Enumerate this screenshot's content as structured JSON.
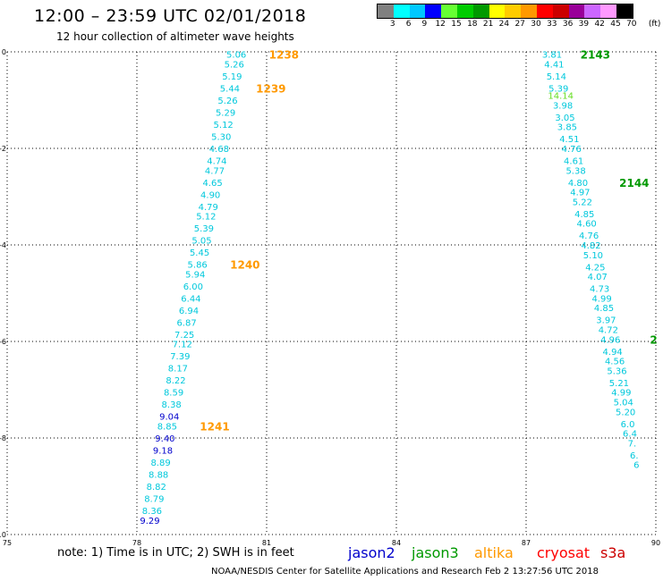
{
  "title": "12:00 – 23:59 UTC 02/01/2018",
  "subtitle": "12 hour collection of altimeter wave heights",
  "scale": {
    "colors": [
      "#808080",
      "#00ffff",
      "#00c8ff",
      "#0000ff",
      "#66ff33",
      "#00cc00",
      "#009900",
      "#ffff00",
      "#ffcc00",
      "#ff9900",
      "#ff0000",
      "#cc0000",
      "#990099",
      "#cc66ff",
      "#ff99ff",
      "#000000"
    ],
    "labels": [
      "3",
      "6",
      "9",
      "12",
      "15",
      "18",
      "21",
      "24",
      "27",
      "30",
      "33",
      "36",
      "39",
      "42",
      "45",
      "70",
      "(ft)"
    ]
  },
  "chart_data": {
    "type": "scatter",
    "x_ticks": [
      "75",
      "78",
      "81",
      "84",
      "87",
      "90"
    ],
    "y_ticks": [
      "0",
      "-2",
      "-4",
      "-6",
      "-8",
      "-10"
    ],
    "xlim": [
      75,
      90
    ],
    "ylim": [
      -10,
      0
    ],
    "grid": true,
    "tracks": [
      {
        "label_color": "#00c8dc",
        "points": [
          {
            "x": 80.3,
            "y": -0.05,
            "v": "5.06"
          },
          {
            "x": 80.25,
            "y": -0.25,
            "v": "5.26"
          },
          {
            "x": 80.2,
            "y": -0.5,
            "v": "5.19"
          },
          {
            "x": 80.15,
            "y": -0.75,
            "v": "5.44"
          },
          {
            "x": 80.1,
            "y": -1.0,
            "v": "5.26"
          },
          {
            "x": 80.05,
            "y": -1.25,
            "v": "5.29"
          },
          {
            "x": 80.0,
            "y": -1.5,
            "v": "5.12"
          },
          {
            "x": 79.95,
            "y": -1.75,
            "v": "5.30"
          },
          {
            "x": 79.9,
            "y": -2.0,
            "v": "4.68"
          },
          {
            "x": 79.85,
            "y": -2.25,
            "v": "4.74"
          },
          {
            "x": 79.8,
            "y": -2.45,
            "v": "4.77"
          },
          {
            "x": 79.75,
            "y": -2.7,
            "v": "4.65"
          },
          {
            "x": 79.7,
            "y": -2.95,
            "v": "4.90"
          },
          {
            "x": 79.65,
            "y": -3.2,
            "v": "4.79"
          },
          {
            "x": 79.6,
            "y": -3.4,
            "v": "5.12"
          },
          {
            "x": 79.55,
            "y": -3.65,
            "v": "5.39"
          },
          {
            "x": 79.5,
            "y": -3.9,
            "v": "5.05"
          },
          {
            "x": 79.45,
            "y": -4.15,
            "v": "5.45"
          },
          {
            "x": 79.4,
            "y": -4.4,
            "v": "5.86"
          },
          {
            "x": 79.35,
            "y": -4.6,
            "v": "5.94"
          },
          {
            "x": 79.3,
            "y": -4.85,
            "v": "6.00"
          },
          {
            "x": 79.25,
            "y": -5.1,
            "v": "6.44"
          },
          {
            "x": 79.2,
            "y": -5.35,
            "v": "6.94"
          },
          {
            "x": 79.15,
            "y": -5.6,
            "v": "6.87"
          },
          {
            "x": 79.1,
            "y": -5.85,
            "v": "7.25"
          },
          {
            "x": 79.05,
            "y": -6.05,
            "v": "7.12"
          },
          {
            "x": 79.0,
            "y": -6.3,
            "v": "7.39"
          },
          {
            "x": 78.95,
            "y": -6.55,
            "v": "8.17"
          },
          {
            "x": 78.9,
            "y": -6.8,
            "v": "8.22"
          },
          {
            "x": 78.85,
            "y": -7.05,
            "v": "8.59"
          },
          {
            "x": 78.8,
            "y": -7.3,
            "v": "8.38"
          },
          {
            "x": 78.75,
            "y": -7.55,
            "v": "9.04",
            "c": "#0000cc"
          },
          {
            "x": 78.7,
            "y": -7.75,
            "v": "8.85"
          },
          {
            "x": 78.65,
            "y": -8.0,
            "v": "9.40",
            "c": "#0000cc"
          },
          {
            "x": 78.6,
            "y": -8.25,
            "v": "9.18",
            "c": "#0000cc"
          },
          {
            "x": 78.55,
            "y": -8.5,
            "v": "8.89"
          },
          {
            "x": 78.5,
            "y": -8.75,
            "v": "8.88"
          },
          {
            "x": 78.45,
            "y": -9.0,
            "v": "8.82"
          },
          {
            "x": 78.4,
            "y": -9.25,
            "v": "8.79"
          },
          {
            "x": 78.35,
            "y": -9.5,
            "v": "8.36"
          },
          {
            "x": 78.3,
            "y": -9.7,
            "v": "9.29",
            "c": "#0000cc"
          }
        ],
        "time_labels": [
          {
            "x": 81.4,
            "y": -0.05,
            "text": "1238"
          },
          {
            "x": 81.1,
            "y": -0.75,
            "text": "1239"
          },
          {
            "x": 80.5,
            "y": -4.4,
            "text": "1240"
          },
          {
            "x": 79.8,
            "y": -7.75,
            "text": "1241"
          }
        ]
      },
      {
        "label_color": "#00c8dc",
        "points": [
          {
            "x": 87.6,
            "y": -0.05,
            "v": "3.81"
          },
          {
            "x": 87.65,
            "y": -0.25,
            "v": "4.41"
          },
          {
            "x": 87.7,
            "y": -0.5,
            "v": "5.14"
          },
          {
            "x": 87.75,
            "y": -0.75,
            "v": "5.39"
          },
          {
            "x": 87.8,
            "y": -0.9,
            "v": "14.14",
            "c": "#66dd22"
          },
          {
            "x": 87.85,
            "y": -1.1,
            "v": "3.98"
          },
          {
            "x": 87.9,
            "y": -1.35,
            "v": "3.05"
          },
          {
            "x": 87.95,
            "y": -1.55,
            "v": "3.85"
          },
          {
            "x": 88.0,
            "y": -1.8,
            "v": "4.51"
          },
          {
            "x": 88.05,
            "y": -2.0,
            "v": "4.76"
          },
          {
            "x": 88.1,
            "y": -2.25,
            "v": "4.61"
          },
          {
            "x": 88.15,
            "y": -2.45,
            "v": "5.38"
          },
          {
            "x": 88.2,
            "y": -2.7,
            "v": "4.80"
          },
          {
            "x": 88.25,
            "y": -2.9,
            "v": "4.97"
          },
          {
            "x": 88.3,
            "y": -3.1,
            "v": "5.22"
          },
          {
            "x": 88.35,
            "y": -3.35,
            "v": "4.85"
          },
          {
            "x": 88.4,
            "y": -3.55,
            "v": "4.60"
          },
          {
            "x": 88.45,
            "y": -3.8,
            "v": "4.76"
          },
          {
            "x": 88.5,
            "y": -4.0,
            "v": "4.82"
          },
          {
            "x": 88.55,
            "y": -4.2,
            "v": "5.10"
          },
          {
            "x": 88.6,
            "y": -4.45,
            "v": "4.25"
          },
          {
            "x": 88.65,
            "y": -4.65,
            "v": "4.07"
          },
          {
            "x": 88.7,
            "y": -4.9,
            "v": "4.73"
          },
          {
            "x": 88.75,
            "y": -5.1,
            "v": "4.99"
          },
          {
            "x": 88.8,
            "y": -5.3,
            "v": "4.85"
          },
          {
            "x": 88.85,
            "y": -5.55,
            "v": "3.97"
          },
          {
            "x": 88.9,
            "y": -5.75,
            "v": "4.72"
          },
          {
            "x": 88.95,
            "y": -5.95,
            "v": "4.96"
          },
          {
            "x": 89.0,
            "y": -6.2,
            "v": "4.94"
          },
          {
            "x": 89.05,
            "y": -6.4,
            "v": "4.56"
          },
          {
            "x": 89.1,
            "y": -6.6,
            "v": "5.36"
          },
          {
            "x": 89.15,
            "y": -6.85,
            "v": "5.21"
          },
          {
            "x": 89.2,
            "y": -7.05,
            "v": "4.99"
          },
          {
            "x": 89.25,
            "y": -7.25,
            "v": "5.04"
          },
          {
            "x": 89.3,
            "y": -7.45,
            "v": "5.20"
          },
          {
            "x": 89.35,
            "y": -7.7,
            "v": "6.0"
          },
          {
            "x": 89.4,
            "y": -7.9,
            "v": "6.4"
          },
          {
            "x": 89.45,
            "y": -8.1,
            "v": "7."
          },
          {
            "x": 89.5,
            "y": -8.35,
            "v": "6."
          },
          {
            "x": 89.55,
            "y": -8.55,
            "v": "6"
          }
        ],
        "time_labels": [
          {
            "x": 88.6,
            "y": -0.05,
            "text": "2143"
          },
          {
            "x": 89.5,
            "y": -2.7,
            "text": "2144"
          },
          {
            "x": 89.95,
            "y": -5.95,
            "text": "2"
          }
        ]
      }
    ]
  },
  "legend": {
    "note": "note: 1) Time is in UTC; 2) SWH is in feet",
    "missions": [
      {
        "name": "jason2",
        "color": "#0000cc"
      },
      {
        "name": "jason3",
        "color": "#009900"
      },
      {
        "name": "altika",
        "color": "#ff9900"
      },
      {
        "name": "cryosat",
        "color": "#ff0000"
      },
      {
        "name": "s3a",
        "color": "#cc0000"
      }
    ]
  },
  "footer": "NOAA/NESDIS Center for Satellite Applications and Research    Feb  2 13:27:56 UTC 2018"
}
